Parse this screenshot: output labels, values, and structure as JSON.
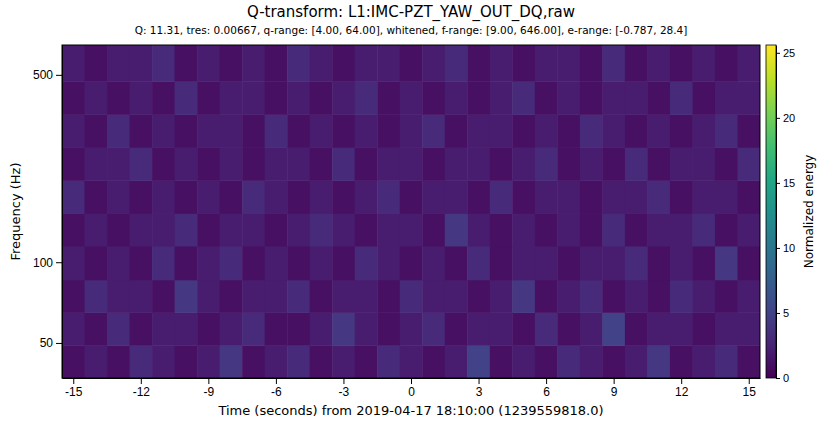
{
  "chart_data": {
    "type": "heatmap",
    "title": "Q-transform: L1:IMC-PZT_YAW_OUT_DQ,raw",
    "subtitle": "Q: 11.31, tres: 0.00667, q-range: [4.00, 64.00], whitened, f-range: [9.00, 646.00], e-range: [-0.787, 28.4]",
    "x_label": "Time (seconds) from 2019-04-17 18:10:00 (1239559818.0)",
    "y_label": "Frequency (Hz)",
    "colorbar_label": "Normalized energy",
    "log": "y",
    "grid": false,
    "xlim": [
      -15.5,
      15.5
    ],
    "xticks": [
      -15,
      -12,
      -9,
      -6,
      -3,
      0,
      3,
      6,
      9,
      12,
      15
    ],
    "ylim": [
      37,
      646
    ],
    "yticks": [
      50,
      100,
      500
    ],
    "colorbar_range": [
      0,
      25.6
    ],
    "colorbar_ticks": [
      0,
      5,
      10,
      15,
      20,
      25
    ],
    "x_bins": [
      -15.5,
      -14.5,
      -13.5,
      -12.5,
      -11.5,
      -10.5,
      -9.5,
      -8.5,
      -7.5,
      -6.5,
      -5.5,
      -4.5,
      -3.5,
      -2.5,
      -1.5,
      -0.5,
      0.5,
      1.5,
      2.5,
      3.5,
      4.5,
      5.5,
      6.5,
      7.5,
      8.5,
      9.5,
      10.5,
      11.5,
      12.5,
      13.5,
      14.5,
      15.5
    ],
    "y_bins": [
      37,
      49,
      65,
      86,
      115,
      152,
      202,
      268,
      356,
      473,
      646
    ],
    "values": [
      [
        1,
        2,
        1,
        3,
        2,
        1,
        2,
        4,
        1,
        2,
        3,
        1,
        2,
        1,
        3,
        2,
        1,
        2,
        5,
        1,
        2,
        1,
        3,
        2,
        1,
        2,
        4,
        1,
        2,
        3,
        1
      ],
      [
        2,
        1,
        3,
        1,
        2,
        2,
        1,
        2,
        3,
        1,
        1,
        2,
        4,
        2,
        1,
        2,
        3,
        1,
        2,
        2,
        1,
        3,
        1,
        2,
        5,
        1,
        2,
        2,
        1,
        2,
        2
      ],
      [
        1,
        3,
        2,
        2,
        1,
        4,
        2,
        1,
        2,
        2,
        3,
        1,
        2,
        2,
        1,
        3,
        2,
        2,
        1,
        2,
        4,
        1,
        2,
        3,
        1,
        2,
        1,
        3,
        2,
        1,
        2
      ],
      [
        2,
        1,
        2,
        1,
        3,
        1,
        2,
        3,
        1,
        2,
        1,
        2,
        1,
        3,
        2,
        1,
        2,
        1,
        3,
        1,
        2,
        2,
        1,
        2,
        2,
        3,
        1,
        2,
        1,
        4,
        1
      ],
      [
        1,
        2,
        1,
        2,
        2,
        3,
        1,
        2,
        2,
        1,
        2,
        3,
        2,
        1,
        2,
        2,
        1,
        4,
        2,
        1,
        2,
        1,
        2,
        1,
        3,
        1,
        2,
        2,
        3,
        1,
        2
      ],
      [
        3,
        1,
        2,
        1,
        2,
        1,
        2,
        1,
        3,
        2,
        1,
        2,
        1,
        2,
        3,
        1,
        2,
        2,
        1,
        3,
        1,
        2,
        2,
        1,
        2,
        2,
        3,
        1,
        2,
        2,
        1
      ],
      [
        1,
        2,
        2,
        3,
        1,
        2,
        1,
        2,
        1,
        2,
        2,
        1,
        3,
        1,
        2,
        2,
        1,
        2,
        2,
        1,
        2,
        3,
        1,
        2,
        1,
        3,
        1,
        2,
        2,
        1,
        3
      ],
      [
        2,
        1,
        3,
        1,
        2,
        1,
        2,
        2,
        1,
        3,
        1,
        2,
        1,
        2,
        1,
        2,
        3,
        1,
        2,
        2,
        1,
        2,
        1,
        3,
        2,
        1,
        2,
        1,
        2,
        3,
        1
      ],
      [
        1,
        2,
        1,
        2,
        1,
        3,
        1,
        2,
        2,
        1,
        2,
        1,
        2,
        3,
        1,
        2,
        1,
        2,
        1,
        2,
        3,
        1,
        2,
        1,
        2,
        2,
        1,
        3,
        1,
        2,
        2
      ],
      [
        2,
        1,
        2,
        2,
        3,
        1,
        2,
        1,
        2,
        1,
        3,
        2,
        1,
        2,
        2,
        1,
        2,
        3,
        1,
        2,
        1,
        2,
        2,
        1,
        3,
        1,
        2,
        1,
        2,
        1,
        2
      ]
    ]
  }
}
